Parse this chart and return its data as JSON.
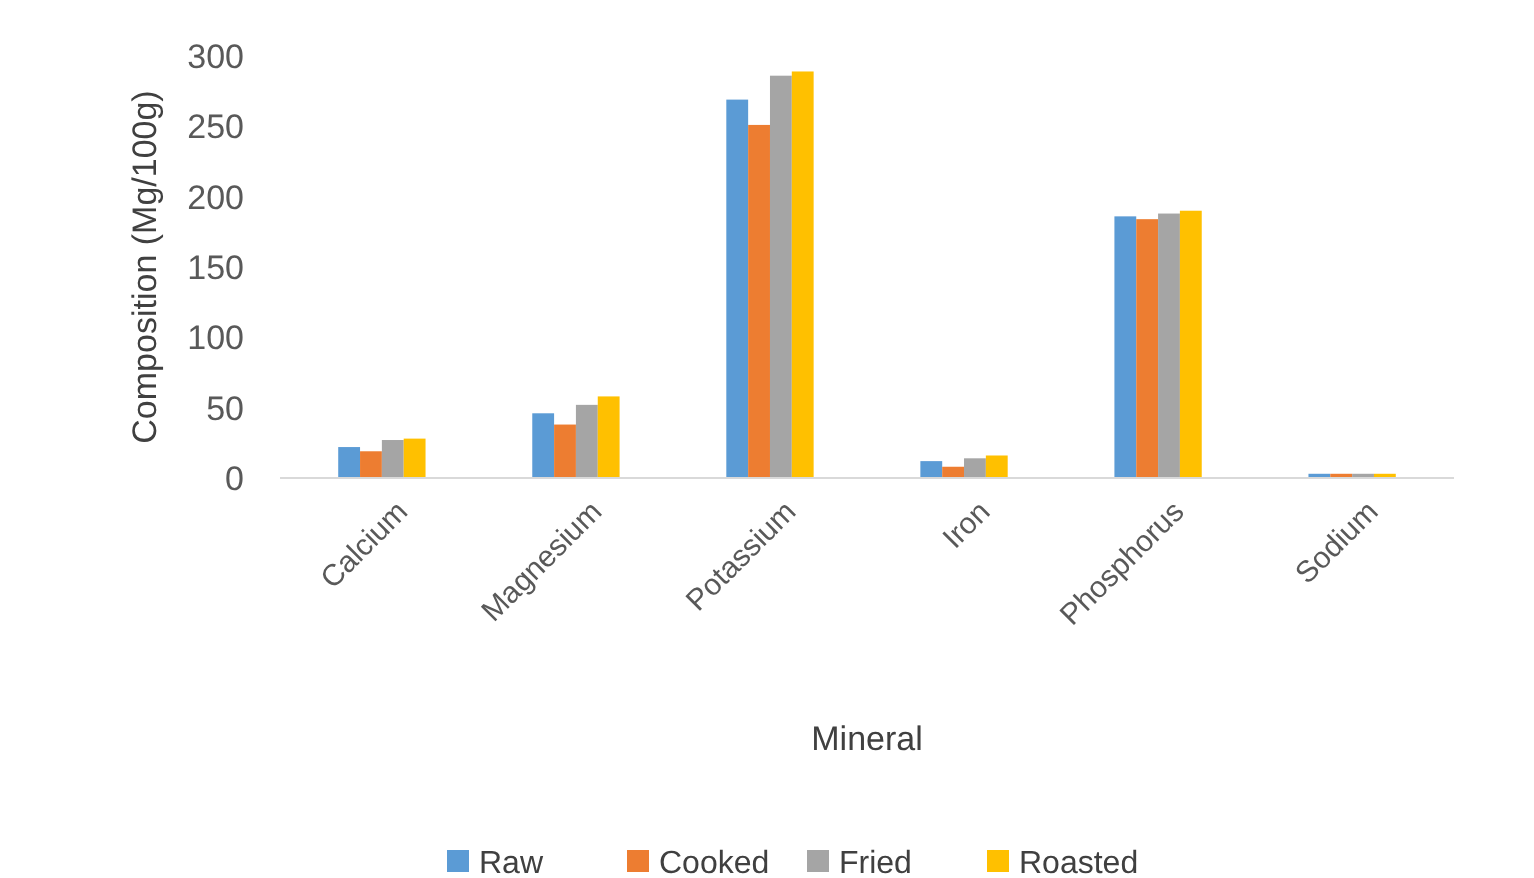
{
  "chart_data": {
    "type": "bar",
    "xlabel": "Mineral",
    "ylabel": "Composition (Mg/100g)",
    "categories": [
      "Calcium",
      "Magnesium",
      "Potassium",
      "Iron",
      "Phosphorus",
      "Sodium"
    ],
    "series": [
      {
        "name": "Raw",
        "color": "#5b9bd5",
        "values": [
          22,
          46,
          269,
          12,
          186,
          3
        ]
      },
      {
        "name": "Cooked",
        "color": "#ed7d31",
        "values": [
          19,
          38,
          251,
          8,
          184,
          3
        ]
      },
      {
        "name": "Fried",
        "color": "#a5a5a5",
        "values": [
          27,
          52,
          286,
          14,
          188,
          3
        ]
      },
      {
        "name": "Roasted",
        "color": "#ffc000",
        "values": [
          28,
          58,
          289,
          16,
          190,
          3
        ]
      }
    ],
    "ylim": [
      0,
      300
    ],
    "yticks": [
      0,
      50,
      100,
      150,
      200,
      250,
      300
    ],
    "grid": false,
    "legend": "bottom"
  }
}
